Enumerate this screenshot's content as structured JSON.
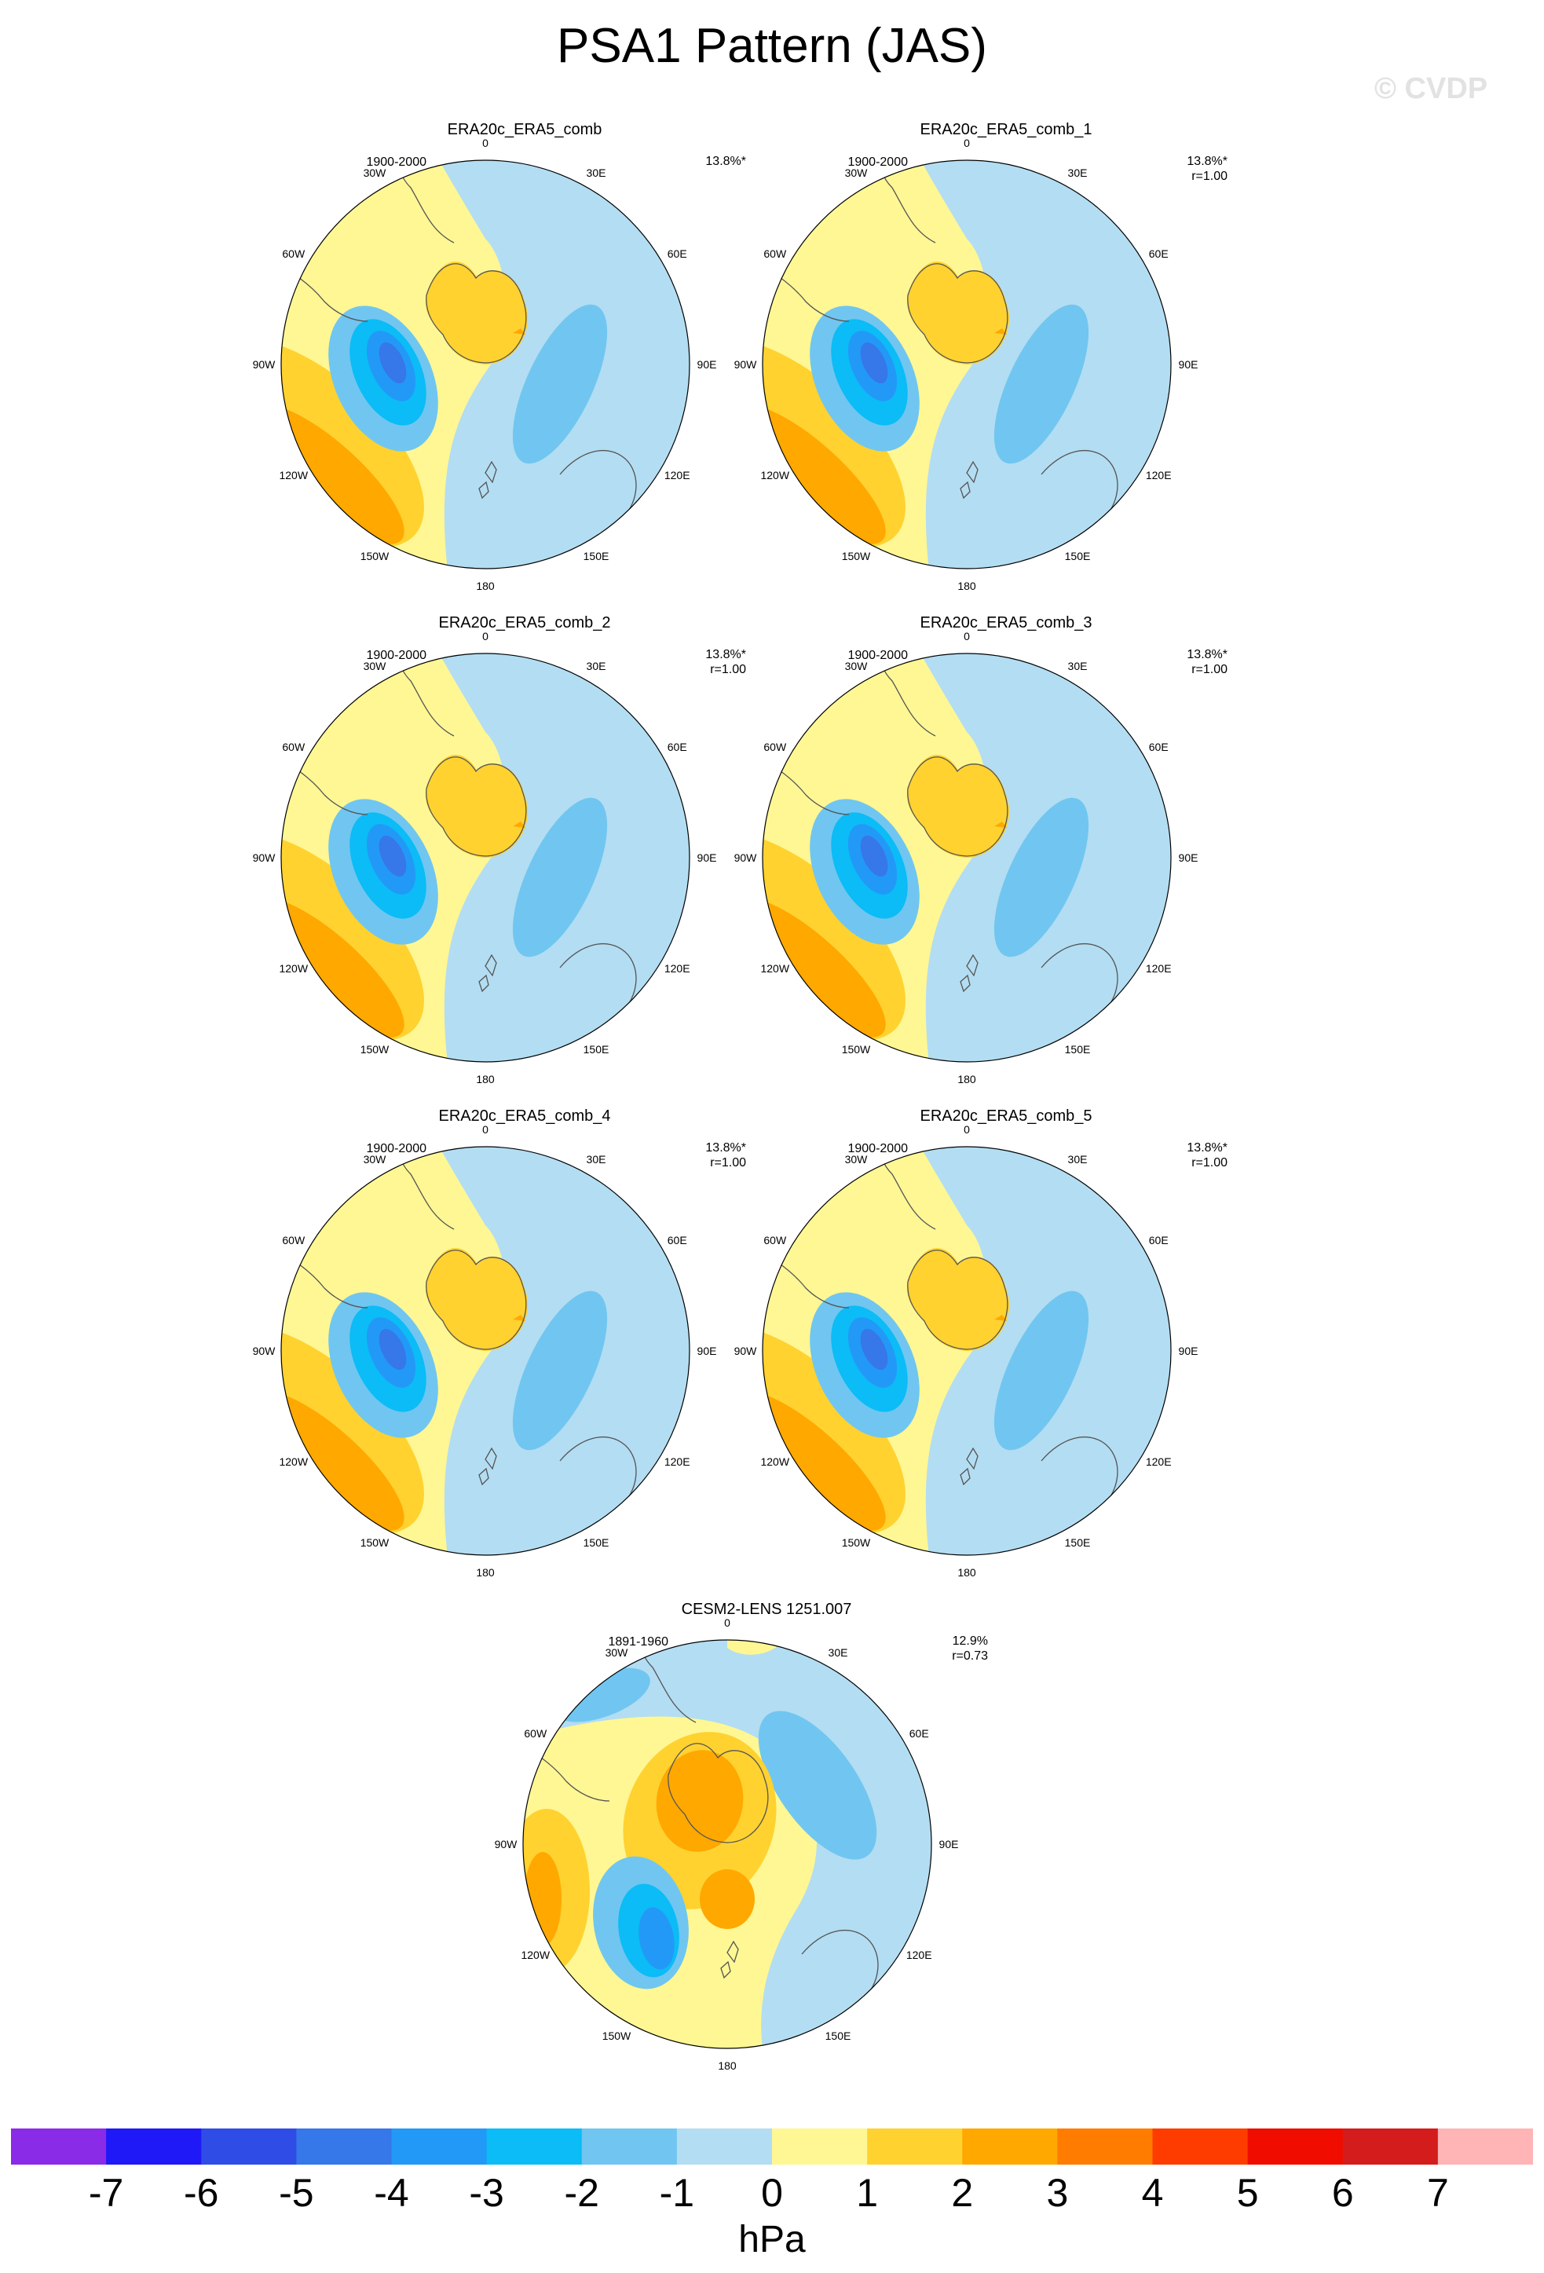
{
  "figure": {
    "title": "PSA1 Pattern (JAS)",
    "watermark": "© CVDP"
  },
  "colors": {
    "land_outline": "#555555",
    "map_border": "#000000",
    "levels": [
      {
        "range": "<-7",
        "hex": "#8a2be8"
      },
      {
        "range": "-7 to -6",
        "hex": "#1f18f7"
      },
      {
        "range": "-6 to -5",
        "hex": "#2f4de6"
      },
      {
        "range": "-5 to -4",
        "hex": "#3677e9"
      },
      {
        "range": "-4 to -3",
        "hex": "#2399f7"
      },
      {
        "range": "-3 to -2",
        "hex": "#0bbcf6"
      },
      {
        "range": "-2 to -1",
        "hex": "#70c6f0"
      },
      {
        "range": "-1 to 0",
        "hex": "#b3ddf2"
      },
      {
        "range": "0 to 1",
        "hex": "#fff794"
      },
      {
        "range": "1 to 2",
        "hex": "#ffd230"
      },
      {
        "range": "2 to 3",
        "hex": "#ffa800"
      },
      {
        "range": "3 to 4",
        "hex": "#ff7c00"
      },
      {
        "range": "4 to 5",
        "hex": "#ff3c00"
      },
      {
        "range": "5 to 6",
        "hex": "#f00d00"
      },
      {
        "range": "6 to 7",
        "hex": "#d41c1c"
      },
      {
        "range": ">7",
        "hex": "#ffb5b5"
      }
    ]
  },
  "panels": [
    {
      "id": "p1",
      "title": "ERA20c_ERA5_comb",
      "period": "1900-2000",
      "variance": "13.8%*",
      "pattern_r": ""
    },
    {
      "id": "p2",
      "title": "ERA20c_ERA5_comb_1",
      "period": "1900-2000",
      "variance": "13.8%*",
      "pattern_r": "r=1.00"
    },
    {
      "id": "p3",
      "title": "ERA20c_ERA5_comb_2",
      "period": "1900-2000",
      "variance": "13.8%*",
      "pattern_r": "r=1.00"
    },
    {
      "id": "p4",
      "title": "ERA20c_ERA5_comb_3",
      "period": "1900-2000",
      "variance": "13.8%*",
      "pattern_r": "r=1.00"
    },
    {
      "id": "p5",
      "title": "ERA20c_ERA5_comb_4",
      "period": "1900-2000",
      "variance": "13.8%*",
      "pattern_r": "r=1.00"
    },
    {
      "id": "p6",
      "title": "ERA20c_ERA5_comb_5",
      "period": "1900-2000",
      "variance": "13.8%*",
      "pattern_r": "r=1.00"
    },
    {
      "id": "p7",
      "title": "CESM2-LENS 1251.007",
      "period": "1891-1960",
      "variance": "12.9%",
      "pattern_r": "r=0.73"
    }
  ],
  "lon_labels": [
    "0",
    "30E",
    "60E",
    "90E",
    "120E",
    "150E",
    "180",
    "150W",
    "120W",
    "90W",
    "60W",
    "30W"
  ],
  "colorbar": {
    "ticks": [
      "-7",
      "-6",
      "-5",
      "-4",
      "-3",
      "-2",
      "-1",
      "0",
      "1",
      "2",
      "3",
      "4",
      "5",
      "6",
      "7"
    ],
    "units": "hPa"
  }
}
